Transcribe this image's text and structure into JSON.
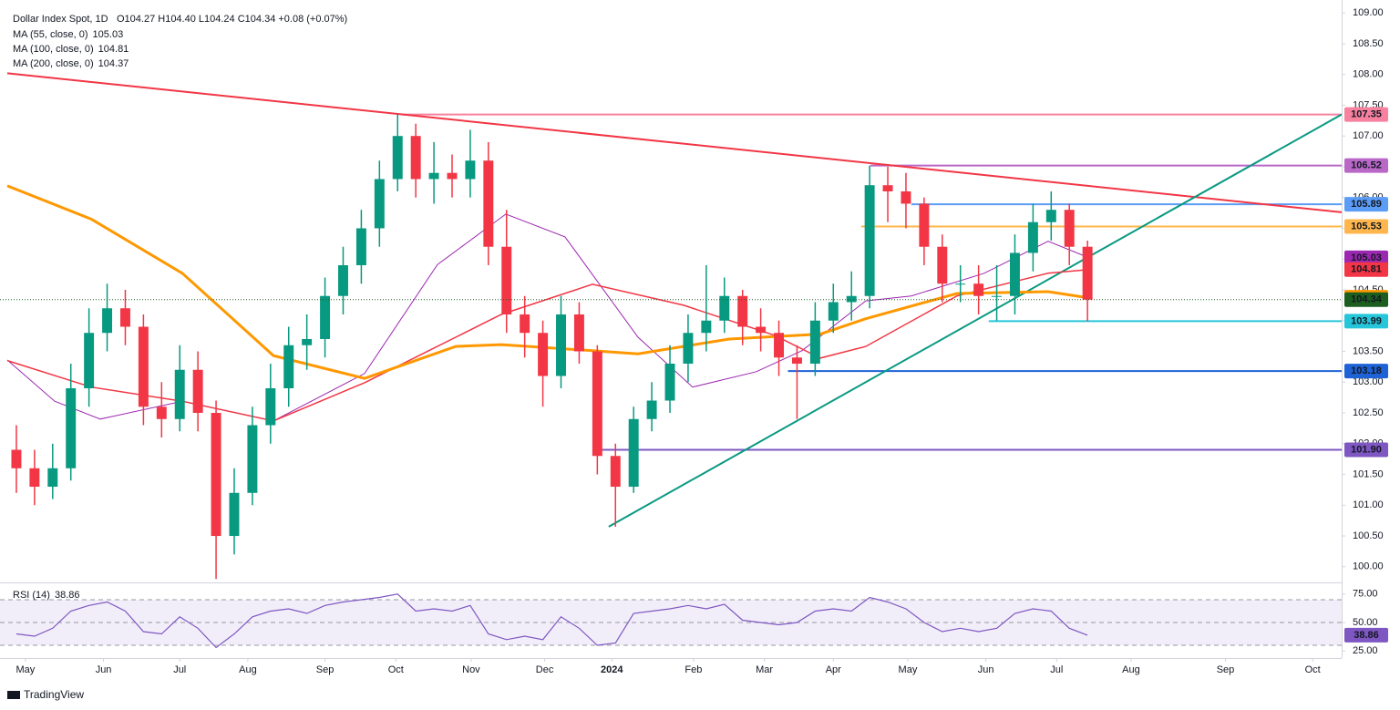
{
  "chart_data": [
    {
      "type": "candlestick",
      "title": "Dollar Index Spot, 1D",
      "summary": "O104.27 H104.40 L104.24 C104.34 +0.08 (+0.07%)",
      "up_color": "#089981",
      "down_color": "#f23645",
      "xlim": [
        -0.5,
        73
      ],
      "ylim": [
        99.76,
        109.21
      ],
      "xticks": [
        {
          "value": 0.5,
          "label": "May"
        },
        {
          "value": 4.8,
          "label": "Jun"
        },
        {
          "value": 9.0,
          "label": "Jul"
        },
        {
          "value": 12.75,
          "label": "Aug"
        },
        {
          "value": 17.0,
          "label": "Sep"
        },
        {
          "value": 20.9,
          "label": "Oct"
        },
        {
          "value": 25.05,
          "label": "Nov"
        },
        {
          "value": 29.1,
          "label": "Dec"
        },
        {
          "value": 32.8,
          "label": "2024"
        },
        {
          "value": 37.3,
          "label": "Feb"
        },
        {
          "value": 41.2,
          "label": "Mar"
        },
        {
          "value": 45.0,
          "label": "Apr"
        },
        {
          "value": 49.1,
          "label": "May"
        },
        {
          "value": 53.4,
          "label": "Jun"
        },
        {
          "value": 57.3,
          "label": "Jul"
        },
        {
          "value": 61.4,
          "label": "Aug"
        },
        {
          "value": 66.6,
          "label": "Sep"
        },
        {
          "value": 71.4,
          "label": "Oct"
        }
      ],
      "yticks": [
        {
          "value": 100,
          "label": "100.00"
        },
        {
          "value": 100.5,
          "label": "100.50"
        },
        {
          "value": 101,
          "label": "101.00"
        },
        {
          "value": 101.5,
          "label": "101.50"
        },
        {
          "value": 102,
          "label": "102.00"
        },
        {
          "value": 102.5,
          "label": "102.50"
        },
        {
          "value": 103,
          "label": "103.00"
        },
        {
          "value": 103.5,
          "label": "103.50"
        },
        {
          "value": 104,
          "label": "104.00"
        },
        {
          "value": 104.5,
          "label": "104.50"
        },
        {
          "value": 105,
          "label": "105.00"
        },
        {
          "value": 105.5,
          "label": "105.50"
        },
        {
          "value": 106,
          "label": "106.00"
        },
        {
          "value": 106.5,
          "label": "106.50"
        },
        {
          "value": 107,
          "label": "107.00"
        },
        {
          "value": 107.5,
          "label": "107.50"
        },
        {
          "value": 108,
          "label": "108.00"
        },
        {
          "value": 108.5,
          "label": "108.50"
        },
        {
          "value": 109,
          "label": "109.00"
        }
      ],
      "open": [
        101.9,
        101.6,
        101.3,
        101.6,
        102.9,
        103.8,
        104.2,
        103.9,
        102.6,
        102.4,
        103.2,
        102.5,
        100.5,
        101.2,
        102.3,
        102.9,
        103.6,
        103.7,
        104.4,
        104.9,
        105.5,
        106.3,
        107.0,
        106.3,
        106.4,
        106.3,
        106.6,
        105.2,
        104.1,
        103.8,
        103.1,
        104.1,
        103.5,
        101.8,
        101.3,
        102.4,
        102.7,
        103.3,
        103.8,
        104.0,
        104.4,
        103.9,
        103.8,
        103.4,
        103.3,
        104.0,
        104.3,
        104.4,
        106.2,
        106.1,
        105.9,
        105.2,
        104.6,
        104.6,
        104.4,
        104.4,
        105.1,
        105.6,
        105.8,
        105.2
      ],
      "high": [
        102.3,
        101.9,
        102.0,
        103.3,
        104.2,
        104.6,
        104.5,
        104.1,
        103.0,
        103.6,
        103.5,
        102.7,
        101.6,
        102.6,
        103.3,
        103.9,
        104.1,
        104.7,
        105.2,
        105.8,
        106.6,
        107.35,
        107.2,
        106.9,
        106.7,
        107.1,
        106.9,
        105.8,
        104.4,
        104.0,
        104.4,
        104.3,
        103.6,
        102.0,
        102.6,
        103.0,
        103.6,
        104.1,
        104.9,
        104.7,
        104.5,
        104.2,
        104.0,
        103.6,
        104.3,
        104.6,
        104.8,
        106.52,
        106.5,
        106.4,
        106.0,
        105.4,
        104.9,
        104.9,
        104.9,
        105.4,
        105.9,
        106.1,
        105.9,
        105.3
      ],
      "low": [
        101.2,
        101.0,
        101.1,
        101.4,
        102.6,
        103.5,
        103.6,
        102.3,
        102.1,
        102.2,
        102.2,
        99.8,
        100.2,
        101.0,
        102.0,
        102.6,
        103.2,
        103.4,
        104.1,
        104.6,
        105.2,
        106.1,
        106.0,
        105.9,
        106.0,
        106.0,
        104.9,
        103.8,
        103.4,
        102.6,
        102.9,
        103.3,
        101.5,
        100.65,
        101.2,
        102.2,
        102.5,
        103.0,
        103.5,
        103.8,
        103.6,
        103.5,
        103.1,
        102.4,
        103.1,
        103.8,
        104.0,
        104.2,
        105.6,
        105.5,
        104.9,
        104.3,
        104.3,
        104.1,
        104.0,
        104.1,
        104.8,
        105.3,
        104.9,
        103.99
      ],
      "close": [
        101.6,
        101.3,
        101.6,
        102.9,
        103.8,
        104.2,
        103.9,
        102.6,
        102.4,
        103.2,
        102.5,
        100.5,
        101.2,
        102.3,
        102.9,
        103.6,
        103.7,
        104.4,
        104.9,
        105.5,
        106.3,
        107.0,
        106.3,
        106.4,
        106.3,
        106.6,
        105.2,
        104.1,
        103.8,
        103.1,
        104.1,
        103.5,
        101.8,
        101.3,
        102.4,
        102.7,
        103.3,
        103.8,
        104.0,
        104.4,
        103.9,
        103.8,
        103.4,
        103.3,
        104.0,
        104.3,
        104.4,
        106.2,
        106.1,
        105.9,
        105.2,
        104.6,
        104.6,
        104.4,
        104.4,
        105.1,
        105.6,
        105.8,
        105.2,
        104.34
      ],
      "series": [
        {
          "name": "MA (55, close, 0)",
          "color": "#9c27b0",
          "last_label": "105.03",
          "width": 1,
          "x": [
            -0.5,
            2.11,
            4.62,
            9.14,
            14.16,
            19.18,
            23.19,
            26.96,
            30.22,
            34.24,
            37.25,
            40.76,
            43.27,
            46.79,
            49.3,
            53.31,
            56.83,
            59.09
          ],
          "values": [
            103.36,
            102.69,
            102.4,
            102.69,
            102.37,
            103.14,
            104.91,
            105.73,
            105.36,
            103.73,
            102.92,
            103.17,
            103.51,
            104.32,
            104.4,
            104.77,
            105.29,
            105.02
          ]
        },
        {
          "name": "MA (100, close, 0)",
          "color": "#f23645",
          "last_label": "104.81",
          "width": 1.5,
          "x": [
            -0.5,
            4.12,
            9.14,
            14.16,
            19.18,
            24.2,
            26.71,
            31.73,
            36.75,
            41.77,
            44.28,
            46.79,
            51.81,
            56.83,
            59.09
          ],
          "values": [
            103.35,
            102.92,
            102.69,
            102.37,
            102.99,
            103.73,
            104.1,
            104.59,
            104.25,
            103.76,
            103.39,
            103.58,
            104.4,
            104.77,
            104.83
          ]
        },
        {
          "name": "MA (200, close, 0)",
          "color": "#ff9800",
          "last_label": "104.37",
          "width": 3,
          "x": [
            -0.5,
            4.12,
            9.14,
            14.16,
            19.18,
            24.2,
            26.71,
            31.73,
            34.24,
            39.26,
            44.28,
            46.79,
            51.81,
            56.83,
            58.84
          ],
          "values": [
            106.19,
            105.65,
            104.77,
            103.43,
            103.06,
            103.58,
            103.61,
            103.51,
            103.46,
            103.7,
            103.78,
            104.03,
            104.44,
            104.47,
            104.38
          ]
        }
      ],
      "levels": [
        {
          "value": 107.35,
          "label": "107.35",
          "start": 21.2,
          "color": "#f7819f",
          "text_color": "#131722"
        },
        {
          "value": 106.52,
          "label": "106.52",
          "start": 47.04,
          "color": "#ba68c8",
          "text_color": "#ffffff"
        },
        {
          "value": 105.89,
          "label": "105.89",
          "start": 49.3,
          "color": "#5b9cf6",
          "text_color": "#131722"
        },
        {
          "value": 105.53,
          "label": "105.53",
          "start": 46.54,
          "color": "#ffb74d",
          "text_color": "#131722"
        },
        {
          "value": 103.99,
          "label": "103.99",
          "start": 53.56,
          "color": "#26c6da",
          "text_color": "#131722"
        },
        {
          "value": 103.18,
          "label": "103.18",
          "start": 42.5,
          "color": "#1e63d6",
          "text_color": "#ffffff"
        },
        {
          "value": 101.9,
          "label": "101.90",
          "start": 31.98,
          "color": "#7e57c2",
          "text_color": "#ffffff"
        }
      ],
      "trendlines": [
        {
          "color": "#f23645",
          "x": [
            -0.5,
            73
          ],
          "values": [
            108.02,
            105.76
          ]
        },
        {
          "color": "#089981",
          "x": [
            32.63,
            73
          ],
          "values": [
            100.65,
            107.35
          ]
        }
      ],
      "last_price": {
        "value": 104.34,
        "label": "104.34",
        "color": "#1b5e20"
      }
    },
    {
      "type": "rsi",
      "title": "RSI (14)",
      "color": "#7e57c2",
      "xlim": [
        -0.5,
        73
      ],
      "ylim": [
        20.4,
        82.8
      ],
      "yticks": [
        {
          "value": 25,
          "label": "25.00"
        },
        {
          "value": 50,
          "label": "50.00"
        },
        {
          "value": 75,
          "label": "75.00"
        }
      ],
      "band": [
        30,
        70
      ],
      "levels": [
        30,
        50,
        70
      ],
      "values": [
        40,
        38,
        45,
        60,
        65,
        68,
        60,
        42,
        40,
        55,
        45,
        28,
        40,
        55,
        60,
        62,
        58,
        65,
        68,
        70,
        72,
        75,
        60,
        62,
        60,
        65,
        40,
        35,
        38,
        35,
        55,
        45,
        30,
        32,
        58,
        60,
        62,
        65,
        62,
        66,
        52,
        50,
        48,
        50,
        60,
        62,
        60,
        72,
        68,
        62,
        50,
        42,
        45,
        42,
        45,
        58,
        62,
        60,
        45,
        38.86
      ]
    }
  ],
  "footer": "TradingView"
}
